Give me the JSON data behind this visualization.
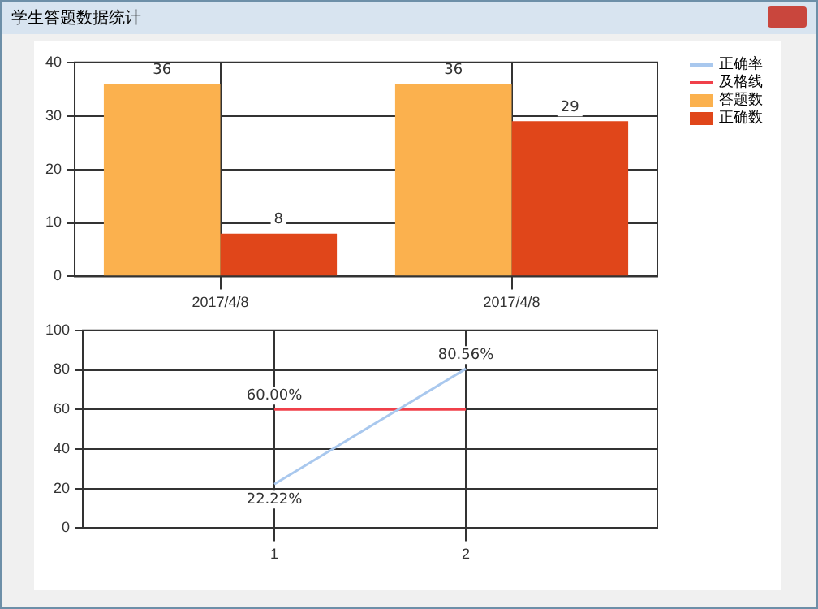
{
  "chart_data": [
    {
      "type": "bar",
      "title": "学生答题数据统计",
      "categories": [
        "2017/4/8",
        "2017/4/8"
      ],
      "series": [
        {
          "name": "答题数",
          "color": "#fbb14e",
          "values": [
            36,
            36
          ]
        },
        {
          "name": "正确数",
          "color": "#e0461a",
          "values": [
            8,
            29
          ]
        }
      ],
      "ylim": [
        0,
        40
      ],
      "yticks": [
        0,
        10,
        20,
        30,
        40
      ],
      "grid": true,
      "legend": "right",
      "data_labels": true
    },
    {
      "type": "line",
      "x": [
        1,
        2
      ],
      "xlim": [
        0,
        3
      ],
      "xticks": [
        1,
        2
      ],
      "ylim": [
        0,
        100
      ],
      "yticks": [
        0,
        20,
        40,
        60,
        80,
        100
      ],
      "grid": true,
      "legend": "right",
      "marker": "none",
      "line_style": "solid",
      "series": [
        {
          "name": "正确率",
          "color": "#a9c8ee",
          "values": [
            22.22,
            80.56
          ],
          "value_labels": [
            "22.22%",
            "80.56%"
          ]
        },
        {
          "name": "及格线",
          "color": "#f0404a",
          "values": [
            60,
            60
          ],
          "value_labels": [
            "60.00%",
            null
          ]
        }
      ]
    }
  ]
}
